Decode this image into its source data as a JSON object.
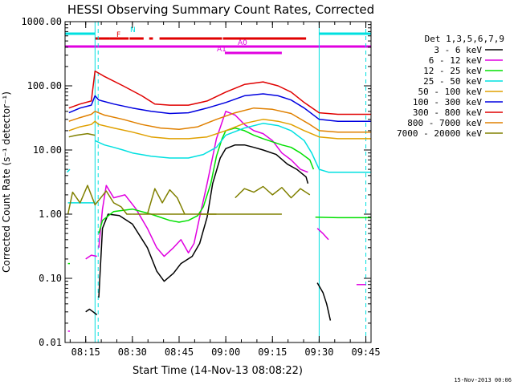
{
  "chart_data": {
    "type": "line",
    "title": "HESSI Observing Summary Count Rates, Corrected",
    "xlabel": "Start Time (14-Nov-13 08:08:22)",
    "ylabel": "Corrected Count Rate (s⁻¹ detector⁻¹)",
    "ylog": true,
    "ylim": [
      0.01,
      1000
    ],
    "xlim": [
      8.1394,
      9.7778
    ],
    "xtick_labels": [
      "08:15",
      "08:30",
      "08:45",
      "09:00",
      "09:15",
      "09:30",
      "09:45"
    ],
    "xtick_values": [
      8.25,
      8.5,
      8.75,
      9.0,
      9.25,
      9.5,
      9.75
    ],
    "ytick_labels": [
      "0.01",
      "0.10",
      "1.00",
      "10.00",
      "100.00",
      "1000.00"
    ],
    "ytick_values": [
      0.01,
      0.1,
      1,
      10,
      100,
      1000
    ],
    "legend_title": "Det 1,3,5,6,7,9",
    "legend_position": "right",
    "footer_date": "15-Nov-2013 00:06",
    "flags": [
      {
        "label": "N",
        "color": "#00e0e0",
        "segments": [
          [
            8.14,
            8.3
          ],
          [
            9.5,
            9.78
          ]
        ]
      },
      {
        "label": "F",
        "color": "#e00000",
        "segments": [
          [
            8.3,
            8.38
          ],
          [
            8.38,
            8.48
          ],
          [
            8.485,
            8.56
          ],
          [
            8.59,
            8.61
          ],
          [
            8.645,
            8.98
          ],
          [
            8.985,
            9.43
          ]
        ]
      },
      {
        "label": "A0",
        "color": "#e000e0",
        "segments": [
          [
            8.14,
            9.78
          ]
        ]
      },
      {
        "label": "A1",
        "color": "#e000e0",
        "segments": [
          [
            8.995,
            9.3
          ]
        ]
      }
    ],
    "vlines": [
      {
        "x": 8.3,
        "color": "#00e0e0",
        "style": "solid"
      },
      {
        "x": 8.3167,
        "color": "#00e0e0",
        "style": "dashed"
      },
      {
        "x": 9.5,
        "color": "#00e0e0",
        "style": "solid"
      },
      {
        "x": 9.75,
        "color": "#00e0e0",
        "style": "dashed"
      }
    ],
    "series": [
      {
        "name": "3 - 6 keV",
        "color": "#000000",
        "segments": [
          [
            [
              8.25,
              0.03
            ],
            [
              8.27,
              0.033
            ],
            [
              8.29,
              0.03
            ],
            [
              8.31,
              0.027
            ]
          ],
          [
            [
              8.32,
              0.05
            ],
            [
              8.34,
              0.6
            ],
            [
              8.37,
              1.0
            ],
            [
              8.43,
              0.95
            ],
            [
              8.5,
              0.7
            ],
            [
              8.58,
              0.3
            ],
            [
              8.63,
              0.13
            ],
            [
              8.67,
              0.09
            ],
            [
              8.72,
              0.12
            ],
            [
              8.76,
              0.17
            ],
            [
              8.82,
              0.22
            ],
            [
              8.86,
              0.35
            ],
            [
              8.9,
              0.9
            ],
            [
              8.93,
              3.0
            ],
            [
              8.97,
              7.5
            ],
            [
              9.0,
              10.5
            ],
            [
              9.05,
              12
            ],
            [
              9.1,
              12
            ],
            [
              9.15,
              11
            ],
            [
              9.2,
              10
            ],
            [
              9.27,
              8.5
            ],
            [
              9.33,
              6.0
            ],
            [
              9.38,
              5.0
            ],
            [
              9.43,
              3.8
            ],
            [
              9.44,
              3.0
            ]
          ],
          [
            [
              9.49,
              0.085
            ],
            [
              9.52,
              0.06
            ],
            [
              9.54,
              0.04
            ],
            [
              9.55,
              0.03
            ],
            [
              9.56,
              0.022
            ]
          ]
        ]
      },
      {
        "name": "6 - 12 keV",
        "color": "#e000e0",
        "segments": [
          [
            [
              8.155,
              0.015
            ],
            [
              8.165,
              0.015
            ]
          ],
          [
            [
              8.25,
              0.2
            ],
            [
              8.28,
              0.23
            ],
            [
              8.31,
              0.22
            ]
          ],
          [
            [
              8.32,
              0.3
            ],
            [
              8.34,
              1.2
            ],
            [
              8.36,
              2.8
            ],
            [
              8.4,
              1.8
            ],
            [
              8.46,
              2.0
            ],
            [
              8.52,
              1.2
            ],
            [
              8.58,
              0.6
            ],
            [
              8.63,
              0.3
            ],
            [
              8.67,
              0.22
            ],
            [
              8.72,
              0.3
            ],
            [
              8.76,
              0.4
            ],
            [
              8.8,
              0.25
            ],
            [
              8.83,
              0.35
            ],
            [
              8.86,
              0.9
            ],
            [
              8.9,
              3.0
            ],
            [
              8.95,
              15
            ],
            [
              9.0,
              40
            ],
            [
              9.05,
              35
            ],
            [
              9.1,
              25
            ],
            [
              9.15,
              20
            ],
            [
              9.2,
              18
            ],
            [
              9.25,
              14
            ],
            [
              9.3,
              9
            ],
            [
              9.35,
              7
            ],
            [
              9.4,
              5
            ],
            [
              9.44,
              4.5
            ]
          ],
          [
            [
              9.49,
              0.6
            ],
            [
              9.52,
              0.5
            ],
            [
              9.55,
              0.4
            ]
          ],
          [
            [
              9.7,
              0.08
            ],
            [
              9.75,
              0.08
            ]
          ]
        ]
      },
      {
        "name": "12 - 25 keV",
        "color": "#00e000",
        "segments": [
          [
            [
              8.155,
              0.17
            ],
            [
              8.165,
              0.17
            ]
          ],
          [
            [
              8.32,
              0.5
            ],
            [
              8.34,
              0.8
            ],
            [
              8.4,
              1.1
            ],
            [
              8.5,
              1.2
            ],
            [
              8.6,
              1.0
            ],
            [
              8.7,
              0.8
            ],
            [
              8.75,
              0.75
            ],
            [
              8.8,
              0.8
            ],
            [
              8.85,
              0.95
            ],
            [
              8.88,
              1.3
            ],
            [
              8.92,
              3
            ],
            [
              8.95,
              8
            ],
            [
              8.98,
              15
            ],
            [
              9.0,
              20
            ],
            [
              9.05,
              22
            ],
            [
              9.1,
              20
            ],
            [
              9.15,
              17
            ],
            [
              9.2,
              15
            ],
            [
              9.3,
              12
            ],
            [
              9.35,
              11
            ],
            [
              9.4,
              9
            ],
            [
              9.45,
              7
            ],
            [
              9.47,
              5
            ]
          ],
          [
            [
              9.48,
              0.9
            ],
            [
              9.6,
              0.88
            ],
            [
              9.78,
              0.88
            ]
          ]
        ]
      },
      {
        "name": "25 - 50 keV",
        "color": "#00e0e0",
        "segments": [
          [
            [
              8.15,
              4.5
            ],
            [
              8.165,
              5.0
            ]
          ],
          [
            [
              8.155,
              1.5
            ],
            [
              8.3,
              1.5
            ]
          ],
          [
            [
              8.3,
              14
            ],
            [
              8.35,
              12
            ],
            [
              8.4,
              11
            ],
            [
              8.45,
              10
            ],
            [
              8.5,
              9
            ],
            [
              8.6,
              8
            ],
            [
              8.7,
              7.5
            ],
            [
              8.8,
              7.5
            ],
            [
              8.88,
              8.5
            ],
            [
              8.95,
              11
            ],
            [
              9.0,
              17
            ],
            [
              9.1,
              22
            ],
            [
              9.2,
              26
            ],
            [
              9.28,
              24
            ],
            [
              9.35,
              20
            ],
            [
              9.42,
              14
            ],
            [
              9.46,
              9
            ],
            [
              9.5,
              5
            ],
            [
              9.55,
              4.5
            ],
            [
              9.6,
              4.5
            ],
            [
              9.78,
              4.5
            ]
          ]
        ]
      },
      {
        "name": "50 - 100 keV",
        "color": "#e0a000",
        "segments": [
          [
            [
              8.16,
              20
            ],
            [
              8.22,
              23
            ],
            [
              8.28,
              25
            ],
            [
              8.3,
              28
            ],
            [
              8.32,
              25
            ],
            [
              8.4,
              22
            ],
            [
              8.5,
              19
            ],
            [
              8.6,
              16
            ],
            [
              8.7,
              15
            ],
            [
              8.8,
              15
            ],
            [
              8.9,
              16
            ],
            [
              9.0,
              20
            ],
            [
              9.1,
              26
            ],
            [
              9.2,
              30
            ],
            [
              9.28,
              28
            ],
            [
              9.35,
              25
            ],
            [
              9.42,
              20
            ],
            [
              9.5,
              16
            ],
            [
              9.6,
              15
            ],
            [
              9.78,
              15
            ]
          ]
        ]
      },
      {
        "name": "100 - 300 keV",
        "color": "#0000e0",
        "segments": [
          [
            [
              8.16,
              38
            ],
            [
              8.22,
              45
            ],
            [
              8.28,
              50
            ],
            [
              8.3,
              70
            ],
            [
              8.32,
              60
            ],
            [
              8.4,
              52
            ],
            [
              8.5,
              45
            ],
            [
              8.6,
              40
            ],
            [
              8.7,
              37
            ],
            [
              8.8,
              38
            ],
            [
              8.9,
              45
            ],
            [
              9.0,
              55
            ],
            [
              9.1,
              70
            ],
            [
              9.2,
              75
            ],
            [
              9.28,
              70
            ],
            [
              9.35,
              60
            ],
            [
              9.42,
              45
            ],
            [
              9.5,
              30
            ],
            [
              9.6,
              28
            ],
            [
              9.78,
              28
            ]
          ]
        ]
      },
      {
        "name": "300 - 800 keV",
        "color": "#e00000",
        "segments": [
          [
            [
              8.16,
              45
            ],
            [
              8.22,
              52
            ],
            [
              8.28,
              58
            ],
            [
              8.3,
              170
            ],
            [
              8.35,
              140
            ],
            [
              8.45,
              100
            ],
            [
              8.55,
              70
            ],
            [
              8.62,
              52
            ],
            [
              8.7,
              50
            ],
            [
              8.8,
              50
            ],
            [
              8.9,
              58
            ],
            [
              9.0,
              80
            ],
            [
              9.1,
              105
            ],
            [
              9.2,
              115
            ],
            [
              9.28,
              100
            ],
            [
              9.35,
              80
            ],
            [
              9.42,
              55
            ],
            [
              9.5,
              38
            ],
            [
              9.6,
              36
            ],
            [
              9.78,
              36
            ]
          ]
        ]
      },
      {
        "name": "800 - 7000 keV",
        "color": "#e08000",
        "segments": [
          [
            [
              8.16,
              28
            ],
            [
              8.22,
              32
            ],
            [
              8.28,
              36
            ],
            [
              8.3,
              40
            ],
            [
              8.35,
              35
            ],
            [
              8.45,
              30
            ],
            [
              8.55,
              25
            ],
            [
              8.65,
              22
            ],
            [
              8.75,
              21
            ],
            [
              8.85,
              23
            ],
            [
              8.95,
              30
            ],
            [
              9.05,
              38
            ],
            [
              9.15,
              45
            ],
            [
              9.25,
              43
            ],
            [
              9.35,
              37
            ],
            [
              9.45,
              25
            ],
            [
              9.5,
              20
            ],
            [
              9.6,
              19
            ],
            [
              9.78,
              19
            ]
          ]
        ]
      },
      {
        "name": "7000 - 20000 keV",
        "color": "#808000",
        "segments": [
          [
            [
              8.16,
              16
            ],
            [
              8.2,
              17
            ],
            [
              8.26,
              18
            ],
            [
              8.3,
              17
            ]
          ],
          [
            [
              8.155,
              1.0
            ],
            [
              8.18,
              2.2
            ],
            [
              8.22,
              1.5
            ],
            [
              8.26,
              2.8
            ],
            [
              8.3,
              1.4
            ],
            [
              8.36,
              2.3
            ],
            [
              8.4,
              1.5
            ],
            [
              8.44,
              1.3
            ],
            [
              8.47,
              1.0
            ],
            [
              8.5,
              1.0
            ]
          ],
          [
            [
              8.5,
              1.0
            ],
            [
              8.95,
              1.0
            ]
          ],
          [
            [
              8.58,
              1.0
            ],
            [
              8.62,
              2.5
            ],
            [
              8.66,
              1.5
            ],
            [
              8.7,
              2.4
            ],
            [
              8.74,
              1.8
            ],
            [
              8.78,
              1.0
            ]
          ],
          [
            [
              8.85,
              1.0
            ],
            [
              9.3,
              1.0
            ]
          ],
          [
            [
              9.05,
              1.8
            ],
            [
              9.1,
              2.5
            ],
            [
              9.15,
              2.2
            ],
            [
              9.2,
              2.7
            ],
            [
              9.25,
              2.0
            ],
            [
              9.3,
              2.6
            ],
            [
              9.35,
              1.8
            ],
            [
              9.4,
              2.5
            ],
            [
              9.45,
              2.0
            ]
          ]
        ]
      }
    ]
  }
}
